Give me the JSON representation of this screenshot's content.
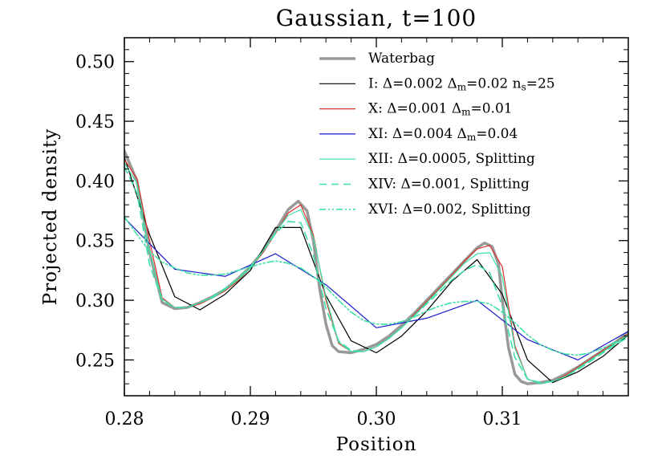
{
  "chart_data": {
    "type": "line",
    "title": "Gaussian, t=100",
    "xlabel": "Position",
    "ylabel": "Projected density",
    "xlim": [
      0.28,
      0.32
    ],
    "ylim": [
      0.22,
      0.52
    ],
    "x_ticks": [
      0.28,
      0.29,
      0.3,
      0.31
    ],
    "x_tick_labels": [
      "0.28",
      "0.29",
      "0.30",
      "0.31"
    ],
    "y_ticks": [
      0.25,
      0.3,
      0.35,
      0.4,
      0.45,
      0.5
    ],
    "y_tick_labels": [
      "0.25",
      "0.30",
      "0.35",
      "0.40",
      "0.45",
      "0.50"
    ],
    "grid": false,
    "legend_position": "top-right",
    "series": [
      {
        "name": "Waterbag",
        "color": "#999999",
        "style": "solid-thick",
        "x": [
          0.28,
          0.281,
          0.282,
          0.283,
          0.284,
          0.285,
          0.286,
          0.287,
          0.288,
          0.289,
          0.29,
          0.291,
          0.292,
          0.293,
          0.2938,
          0.2945,
          0.295,
          0.2955,
          0.296,
          0.2965,
          0.297,
          0.298,
          0.299,
          0.3,
          0.301,
          0.302,
          0.303,
          0.304,
          0.305,
          0.306,
          0.307,
          0.308,
          0.3086,
          0.3092,
          0.3097,
          0.31,
          0.3105,
          0.311,
          0.3115,
          0.312,
          0.313,
          0.314,
          0.315,
          0.316,
          0.317,
          0.318,
          0.319,
          0.32
        ],
        "y": [
          0.425,
          0.4,
          0.34,
          0.298,
          0.293,
          0.294,
          0.298,
          0.303,
          0.309,
          0.318,
          0.328,
          0.341,
          0.358,
          0.376,
          0.383,
          0.375,
          0.35,
          0.31,
          0.28,
          0.262,
          0.257,
          0.256,
          0.259,
          0.263,
          0.27,
          0.279,
          0.289,
          0.3,
          0.311,
          0.322,
          0.333,
          0.344,
          0.348,
          0.345,
          0.33,
          0.3,
          0.26,
          0.238,
          0.232,
          0.23,
          0.231,
          0.233,
          0.238,
          0.244,
          0.251,
          0.258,
          0.265,
          0.273
        ]
      },
      {
        "name": "I: Δ=0.002 Δm=0.02 ns=25",
        "color": "#000000",
        "style": "solid",
        "x": [
          0.28,
          0.282,
          0.284,
          0.286,
          0.288,
          0.29,
          0.292,
          0.294,
          0.296,
          0.298,
          0.3,
          0.302,
          0.304,
          0.306,
          0.308,
          0.31,
          0.312,
          0.314,
          0.316,
          0.318,
          0.32
        ],
        "y": [
          0.42,
          0.355,
          0.303,
          0.292,
          0.305,
          0.325,
          0.361,
          0.361,
          0.304,
          0.266,
          0.256,
          0.27,
          0.291,
          0.316,
          0.334,
          0.305,
          0.25,
          0.231,
          0.24,
          0.253,
          0.271
        ]
      },
      {
        "name": "X: Δ=0.001 Δm=0.01",
        "color": "#d9342b",
        "style": "solid",
        "x": [
          0.28,
          0.281,
          0.282,
          0.283,
          0.284,
          0.285,
          0.286,
          0.287,
          0.288,
          0.289,
          0.29,
          0.291,
          0.292,
          0.293,
          0.294,
          0.295,
          0.296,
          0.297,
          0.298,
          0.299,
          0.3,
          0.301,
          0.302,
          0.303,
          0.304,
          0.305,
          0.306,
          0.307,
          0.308,
          0.309,
          0.31,
          0.311,
          0.312,
          0.313,
          0.314,
          0.315,
          0.316,
          0.317,
          0.318,
          0.319,
          0.32
        ],
        "y": [
          0.418,
          0.402,
          0.35,
          0.302,
          0.294,
          0.294,
          0.297,
          0.302,
          0.308,
          0.316,
          0.327,
          0.34,
          0.356,
          0.373,
          0.38,
          0.355,
          0.3,
          0.264,
          0.257,
          0.257,
          0.261,
          0.268,
          0.277,
          0.288,
          0.299,
          0.31,
          0.321,
          0.333,
          0.343,
          0.346,
          0.328,
          0.262,
          0.234,
          0.23,
          0.232,
          0.237,
          0.244,
          0.251,
          0.258,
          0.265,
          0.272
        ]
      },
      {
        "name": "XI: Δ=0.004 Δm=0.04",
        "color": "#1a1acc",
        "style": "solid",
        "x": [
          0.28,
          0.284,
          0.288,
          0.292,
          0.296,
          0.3,
          0.304,
          0.308,
          0.312,
          0.316,
          0.32
        ],
        "y": [
          0.369,
          0.326,
          0.32,
          0.339,
          0.313,
          0.277,
          0.285,
          0.3,
          0.267,
          0.25,
          0.274
        ]
      },
      {
        "name": "XII: Δ=0.0005, Splitting",
        "color": "#3fe0a8",
        "style": "solid",
        "x": [
          0.28,
          0.281,
          0.282,
          0.283,
          0.284,
          0.285,
          0.286,
          0.287,
          0.288,
          0.289,
          0.29,
          0.291,
          0.292,
          0.293,
          0.294,
          0.295,
          0.296,
          0.297,
          0.298,
          0.299,
          0.3,
          0.301,
          0.302,
          0.303,
          0.304,
          0.305,
          0.306,
          0.307,
          0.308,
          0.309,
          0.31,
          0.311,
          0.312,
          0.313,
          0.314,
          0.315,
          0.316,
          0.317,
          0.318,
          0.319,
          0.32
        ],
        "y": [
          0.415,
          0.398,
          0.34,
          0.301,
          0.294,
          0.294,
          0.298,
          0.302,
          0.309,
          0.317,
          0.327,
          0.341,
          0.357,
          0.371,
          0.376,
          0.353,
          0.303,
          0.265,
          0.257,
          0.257,
          0.261,
          0.268,
          0.277,
          0.287,
          0.298,
          0.309,
          0.32,
          0.331,
          0.339,
          0.34,
          0.32,
          0.26,
          0.234,
          0.23,
          0.232,
          0.236,
          0.243,
          0.25,
          0.257,
          0.264,
          0.271
        ]
      },
      {
        "name": "XIV: Δ=0.001, Splitting",
        "color": "#3fe0a8",
        "style": "dashed",
        "x": [
          0.28,
          0.281,
          0.282,
          0.283,
          0.284,
          0.285,
          0.286,
          0.287,
          0.288,
          0.289,
          0.29,
          0.291,
          0.292,
          0.293,
          0.294,
          0.295,
          0.296,
          0.297,
          0.298,
          0.299,
          0.3,
          0.301,
          0.302,
          0.303,
          0.304,
          0.305,
          0.306,
          0.307,
          0.308,
          0.309,
          0.31,
          0.311,
          0.312,
          0.313,
          0.314,
          0.315,
          0.316,
          0.317,
          0.318,
          0.319,
          0.32
        ],
        "y": [
          0.412,
          0.39,
          0.33,
          0.3,
          0.294,
          0.294,
          0.298,
          0.303,
          0.31,
          0.318,
          0.328,
          0.341,
          0.356,
          0.366,
          0.365,
          0.338,
          0.293,
          0.266,
          0.258,
          0.257,
          0.261,
          0.268,
          0.277,
          0.287,
          0.297,
          0.307,
          0.317,
          0.325,
          0.33,
          0.323,
          0.295,
          0.252,
          0.234,
          0.231,
          0.232,
          0.236,
          0.242,
          0.249,
          0.256,
          0.263,
          0.269
        ]
      },
      {
        "name": "XVI: Δ=0.002, Splitting",
        "color": "#3fe0a8",
        "style": "dash-dot-dot",
        "x": [
          0.28,
          0.281,
          0.282,
          0.283,
          0.284,
          0.285,
          0.286,
          0.287,
          0.288,
          0.289,
          0.29,
          0.291,
          0.292,
          0.293,
          0.294,
          0.295,
          0.296,
          0.297,
          0.298,
          0.299,
          0.3,
          0.301,
          0.302,
          0.303,
          0.304,
          0.305,
          0.306,
          0.307,
          0.308,
          0.309,
          0.31,
          0.311,
          0.312,
          0.313,
          0.314,
          0.315,
          0.316,
          0.317,
          0.318,
          0.319,
          0.32
        ],
        "y": [
          0.37,
          0.355,
          0.341,
          0.332,
          0.327,
          0.323,
          0.321,
          0.321,
          0.322,
          0.325,
          0.328,
          0.331,
          0.333,
          0.331,
          0.327,
          0.32,
          0.311,
          0.3,
          0.29,
          0.283,
          0.28,
          0.28,
          0.282,
          0.286,
          0.291,
          0.295,
          0.298,
          0.299,
          0.299,
          0.297,
          0.29,
          0.281,
          0.271,
          0.263,
          0.258,
          0.255,
          0.254,
          0.256,
          0.26,
          0.265,
          0.271
        ]
      }
    ]
  },
  "legend": [
    {
      "parts": [
        [
          "t",
          "Waterbag"
        ]
      ]
    },
    {
      "parts": [
        [
          "t",
          "I: Δ=0.002 Δ"
        ],
        [
          "s",
          "m"
        ],
        [
          "t",
          "=0.02 n"
        ],
        [
          "s",
          "s"
        ],
        [
          "t",
          "=25"
        ]
      ]
    },
    {
      "parts": [
        [
          "t",
          "X: Δ=0.001 Δ"
        ],
        [
          "s",
          "m"
        ],
        [
          "t",
          "=0.01"
        ]
      ]
    },
    {
      "parts": [
        [
          "t",
          "XI: Δ=0.004 Δ"
        ],
        [
          "s",
          "m"
        ],
        [
          "t",
          "=0.04"
        ]
      ]
    },
    {
      "parts": [
        [
          "t",
          "XII: Δ=0.0005, Splitting"
        ]
      ]
    },
    {
      "parts": [
        [
          "t",
          "XIV: Δ=0.001, Splitting"
        ]
      ]
    },
    {
      "parts": [
        [
          "t",
          "XVI: Δ=0.002, Splitting"
        ]
      ]
    }
  ]
}
